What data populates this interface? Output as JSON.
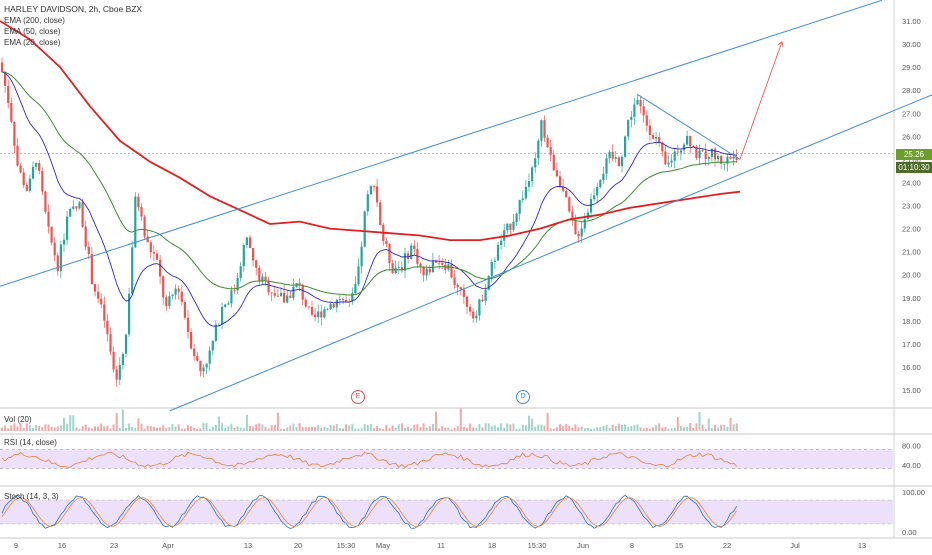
{
  "header": {
    "title": "HARLEY DAVIDSON, 2h, Cboe BZX",
    "indicators": [
      "EMA (200, close)",
      "EMA (50, close)",
      "EMA (20, close)"
    ]
  },
  "price_axis": {
    "labels": [
      "31.00",
      "30.00",
      "29.00",
      "28.00",
      "27.00",
      "26.00",
      "25.00",
      "24.00",
      "23.00",
      "22.00",
      "21.00",
      "20.00",
      "19.00",
      "18.00",
      "17.00",
      "16.00",
      "15.00"
    ],
    "last_price": "25.26",
    "countdown": "01:10:30"
  },
  "time_axis": {
    "labels": [
      "9",
      "16",
      "23",
      "Apr",
      "13",
      "20",
      "15:30",
      "May",
      "11",
      "18",
      "15:30",
      "Jun",
      "8",
      "15",
      "22",
      "Jul",
      "13"
    ]
  },
  "events": {
    "earnings": "E",
    "dividend": "D"
  },
  "panes": {
    "volume": {
      "label": "Vol (20)"
    },
    "rsi": {
      "label": "RSI (14, close)",
      "levels": [
        "80.00",
        "40.00"
      ]
    },
    "stoch": {
      "label": "Stoch (14, 3, 3)",
      "levels": [
        "100.00",
        "0.00"
      ]
    }
  },
  "colors": {
    "up": "#26a69a",
    "down": "#ef5350",
    "ema200": "#e02020",
    "ema50": "#3c8d2f",
    "ema20": "#2b2bc7",
    "channel": "#3d8fd6",
    "arrow": "#e85a5a",
    "rsi_line": "#ef7f2f",
    "band": "#ece0fa",
    "price_badge": "#6c9e2c"
  },
  "chart_data": {
    "type": "candlestick",
    "symbol": "HARLEY DAVIDSON",
    "interval": "2h",
    "ylim": [
      14.5,
      31.5
    ],
    "key_prices": {
      "start": 29.2,
      "march_low": 14.6,
      "april_low": 14.8,
      "april_high": 24.5,
      "may_low": 17.8,
      "jun_high": 27.9,
      "last": 25.26
    },
    "ema200_path": [
      [
        0,
        31.0
      ],
      [
        30,
        30.2
      ],
      [
        60,
        29.0
      ],
      [
        90,
        27.3
      ],
      [
        120,
        25.8
      ],
      [
        150,
        24.9
      ],
      [
        180,
        24.2
      ],
      [
        210,
        23.4
      ],
      [
        240,
        22.8
      ],
      [
        270,
        22.2
      ],
      [
        300,
        22.3
      ],
      [
        330,
        22.0
      ],
      [
        360,
        21.9
      ],
      [
        390,
        21.8
      ],
      [
        420,
        21.7
      ],
      [
        450,
        21.5
      ],
      [
        480,
        21.5
      ],
      [
        510,
        21.7
      ],
      [
        540,
        22.0
      ],
      [
        570,
        22.4
      ],
      [
        600,
        22.6
      ],
      [
        630,
        22.9
      ],
      [
        660,
        23.1
      ],
      [
        690,
        23.3
      ],
      [
        720,
        23.5
      ],
      [
        740,
        23.6
      ]
    ],
    "channel": {
      "upper": [
        [
          0,
          19.5
        ],
        [
          882,
          31.9
        ]
      ],
      "lower": [
        [
          170,
          14.1
        ],
        [
          932,
          27.8
        ]
      ],
      "wedge_top": [
        [
          638,
          27.8
        ],
        [
          740,
          25.0
        ]
      ]
    },
    "projection": {
      "from": [
        740,
        25.0
      ],
      "to": [
        782,
        30.1
      ]
    }
  }
}
